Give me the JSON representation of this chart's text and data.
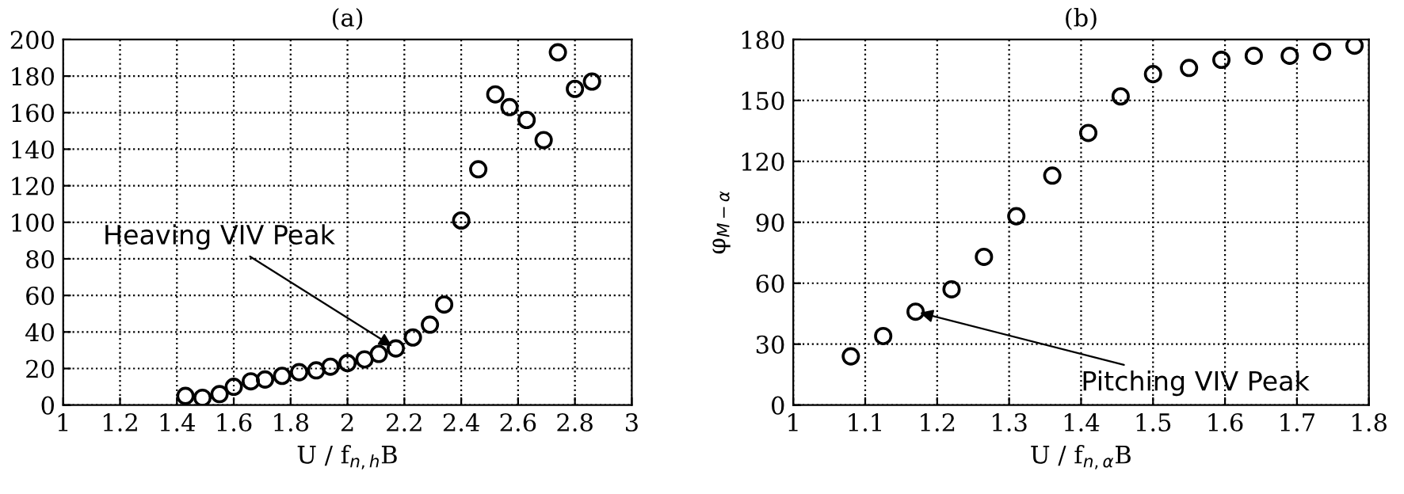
{
  "chart_data": [
    {
      "type": "scatter",
      "title": "(a)",
      "xlabel": "U / f$_{n,h}$B",
      "marker": "circle",
      "grid": true,
      "x": [
        1.43,
        1.49,
        1.55,
        1.6,
        1.66,
        1.71,
        1.77,
        1.83,
        1.89,
        1.94,
        2.0,
        2.06,
        2.11,
        2.17,
        2.23,
        2.29,
        2.34,
        2.4,
        2.46,
        2.52,
        2.57,
        2.63,
        2.69,
        2.74,
        2.8,
        2.86
      ],
      "values": [
        5,
        4,
        6,
        10,
        13,
        14,
        16,
        18,
        19,
        21,
        23,
        25,
        28,
        31,
        37,
        44,
        55,
        101,
        129,
        170,
        163,
        156,
        145,
        193,
        173,
        177
      ],
      "xlim": [
        1,
        3
      ],
      "xticks": [
        1,
        1.2,
        1.4,
        1.6,
        1.8,
        2,
        2.2,
        2.4,
        2.6,
        2.8,
        3
      ],
      "ylim": [
        0,
        200
      ],
      "yticks": [
        0,
        20,
        40,
        60,
        80,
        100,
        120,
        140,
        160,
        180,
        200
      ],
      "annotations": [
        {
          "text": "Heaving VIV Peak",
          "x": 2.17,
          "y": 31
        }
      ]
    },
    {
      "type": "scatter",
      "title": "(b)",
      "xlabel": "U / f$_{n,α}$B",
      "ylabel": "φ$_{M−α}$",
      "marker": "circle",
      "grid": true,
      "x": [
        1.08,
        1.125,
        1.17,
        1.22,
        1.265,
        1.31,
        1.36,
        1.41,
        1.455,
        1.5,
        1.55,
        1.595,
        1.64,
        1.69,
        1.735,
        1.78
      ],
      "values": [
        24,
        34,
        46,
        57,
        73,
        93,
        113,
        134,
        152,
        163,
        166,
        170,
        172,
        172,
        174,
        177
      ],
      "xlim": [
        1,
        1.8
      ],
      "xticks": [
        1,
        1.1,
        1.2,
        1.3,
        1.4,
        1.5,
        1.6,
        1.7,
        1.8
      ],
      "ylim": [
        0,
        180
      ],
      "yticks": [
        0,
        30,
        60,
        90,
        120,
        150,
        180
      ],
      "annotations": [
        {
          "text": "Pitching VIV Peak",
          "x": 1.17,
          "y": 46
        }
      ]
    }
  ]
}
